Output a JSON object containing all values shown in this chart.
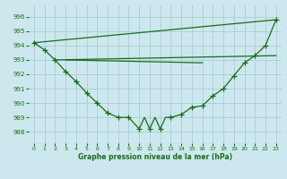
{
  "bg_color": "#cce8ee",
  "grid_color": "#aaccd4",
  "line_color": "#1a6b1a",
  "title": "Graphe pression niveau de la mer (hPa)",
  "xlim": [
    -0.5,
    23.5
  ],
  "ylim": [
    987.2,
    996.8
  ],
  "yticks": [
    988,
    989,
    990,
    991,
    992,
    993,
    994,
    995,
    996
  ],
  "xticks": [
    0,
    1,
    2,
    3,
    4,
    5,
    6,
    7,
    8,
    9,
    10,
    11,
    12,
    13,
    14,
    15,
    16,
    17,
    18,
    19,
    20,
    21,
    22,
    23
  ],
  "main_x": [
    0,
    1,
    2,
    3,
    4,
    5,
    6,
    7,
    8,
    9,
    10,
    10.5,
    11,
    11.5,
    12,
    12.5,
    13,
    14,
    15,
    16,
    17,
    18,
    19,
    20,
    21,
    22,
    23
  ],
  "main_y": [
    994.2,
    993.7,
    993.0,
    992.2,
    991.5,
    990.7,
    990.0,
    989.3,
    989.0,
    989.0,
    988.2,
    989.0,
    988.2,
    989.0,
    988.2,
    989.0,
    989.0,
    989.2,
    989.7,
    989.8,
    990.5,
    991.0,
    991.9,
    992.8,
    993.3,
    994.0,
    995.8
  ],
  "main_markers_x": [
    0,
    1,
    2,
    3,
    4,
    5,
    6,
    7,
    8,
    9,
    10,
    11,
    12,
    13,
    14,
    15,
    16,
    17,
    18,
    19,
    20,
    21,
    22,
    23
  ],
  "main_markers_y": [
    994.2,
    993.7,
    993.0,
    992.2,
    991.5,
    990.7,
    990.0,
    989.3,
    989.0,
    989.0,
    988.2,
    988.2,
    988.2,
    989.0,
    989.2,
    989.7,
    989.8,
    990.5,
    991.0,
    991.9,
    992.8,
    993.3,
    994.0,
    995.8
  ],
  "top_line_x": [
    0,
    23
  ],
  "top_line_y": [
    994.2,
    995.8
  ],
  "flat_line1_x": [
    2,
    23
  ],
  "flat_line1_y": [
    993.0,
    993.3
  ],
  "flat_line2_x": [
    3,
    16
  ],
  "flat_line2_y": [
    993.0,
    992.8
  ]
}
